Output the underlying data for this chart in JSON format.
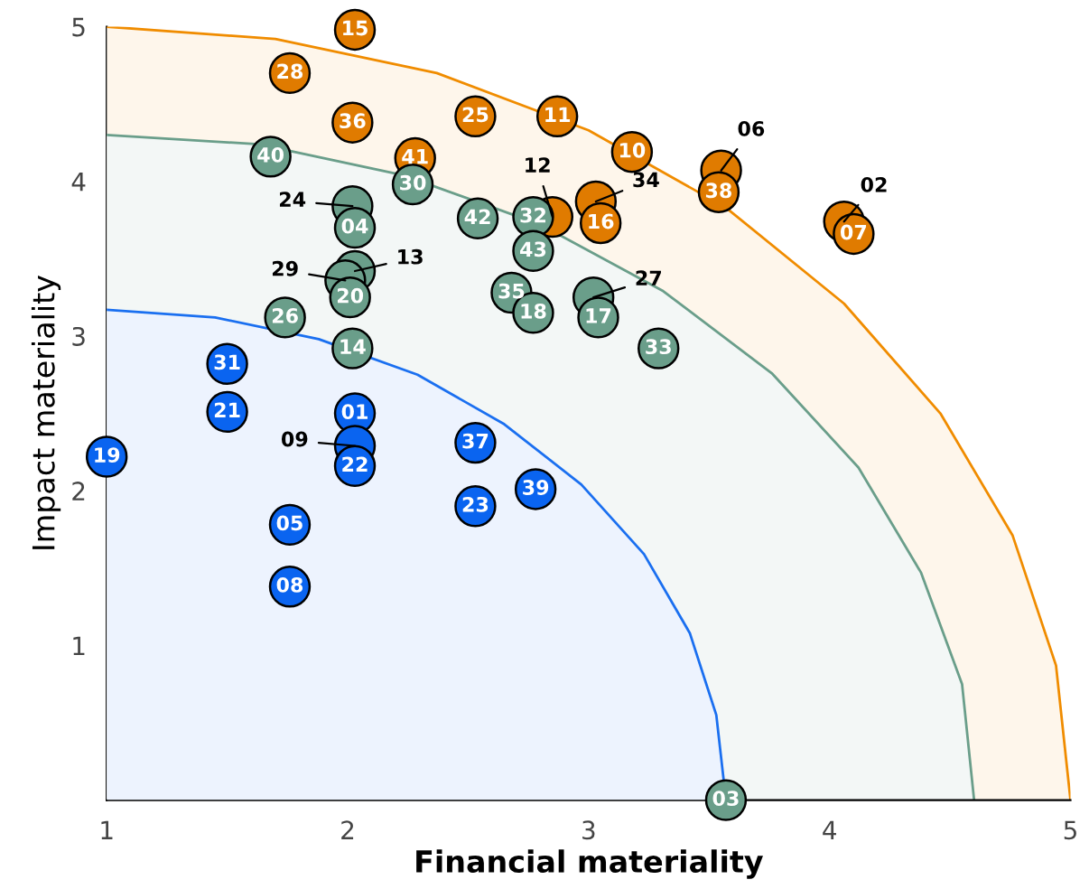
{
  "chart_data": {
    "type": "scatter",
    "xlabel": "Financial materiality",
    "ylabel": "Impact materiality",
    "xlim": [
      1,
      5
    ],
    "ylim": [
      0,
      5
    ],
    "xticks": [
      1,
      2,
      3,
      4,
      5
    ],
    "yticks": [
      1,
      2,
      3,
      4,
      5
    ],
    "grid": false,
    "legend": false,
    "series": [
      {
        "type": "area",
        "color": "#f08c00",
        "x": [
          5,
          4.94,
          4.76,
          4.46,
          4.06,
          3.57,
          3,
          2.37,
          1.7,
          1
        ],
        "values": [
          0,
          0.87,
          1.71,
          2.5,
          3.21,
          3.83,
          4.33,
          4.7,
          4.92,
          5
        ]
      },
      {
        "type": "area",
        "color": "#6a9e8a",
        "x": [
          4.6,
          4.55,
          4.38,
          4.12,
          3.76,
          3.31,
          2.8,
          2.23,
          1.63,
          1
        ],
        "values": [
          0,
          0.75,
          1.47,
          2.15,
          2.76,
          3.29,
          3.72,
          4.04,
          4.24,
          4.3
        ]
      },
      {
        "type": "area",
        "color": "#1a6ff0",
        "x": [
          3.57,
          3.53,
          3.42,
          3.23,
          2.97,
          2.65,
          2.29,
          1.88,
          1.45,
          1
        ],
        "values": [
          0,
          0.55,
          1.08,
          1.59,
          2.04,
          2.43,
          2.75,
          2.98,
          3.12,
          3.17
        ]
      },
      {
        "color": "#e07b00",
        "x": [
          2.03,
          1.76,
          2.02,
          2.28,
          2.53,
          2.87,
          3.18,
          3.55,
          3.54,
          4.06,
          4.1,
          2.85,
          3.03,
          3.05
        ],
        "values": [
          4.98,
          4.7,
          4.38,
          4.15,
          4.42,
          4.42,
          4.19,
          4.07,
          3.93,
          3.74,
          3.66,
          3.77,
          3.87,
          3.73
        ]
      },
      {
        "color": "#6a9e8a",
        "x": [
          1.68,
          2.27,
          2.02,
          2.03,
          2.54,
          2.77,
          2.77,
          2.03,
          1.99,
          2.01,
          1.74,
          2.02,
          2.68,
          2.77,
          3.02,
          3.04,
          3.29,
          3.57
        ],
        "values": [
          4.16,
          3.98,
          3.84,
          3.7,
          3.76,
          3.77,
          3.55,
          3.42,
          3.36,
          3.25,
          3.12,
          2.92,
          3.28,
          3.15,
          3.25,
          3.12,
          2.92,
          0
        ]
      },
      {
        "color": "#0a64f0",
        "x": [
          1.5,
          1.5,
          2.03,
          2.03,
          2.03,
          2.53,
          1.0,
          2.78,
          2.53,
          1.76,
          1.76
        ],
        "values": [
          2.82,
          2.51,
          2.5,
          2.29,
          2.16,
          2.31,
          2.22,
          2.01,
          1.9,
          1.78,
          1.38
        ]
      }
    ],
    "annotations": [
      {
        "text": "12",
        "x": 2.85,
        "y": 3.77
      },
      {
        "text": "34",
        "x": 3.03,
        "y": 3.87
      },
      {
        "text": "06",
        "x": 3.55,
        "y": 4.07
      },
      {
        "text": "02",
        "x": 4.06,
        "y": 3.74
      },
      {
        "text": "24",
        "x": 2.02,
        "y": 3.84
      },
      {
        "text": "29",
        "x": 1.99,
        "y": 3.36
      },
      {
        "text": "13",
        "x": 2.03,
        "y": 3.42
      },
      {
        "text": "09",
        "x": 2.03,
        "y": 2.29
      },
      {
        "text": "27",
        "x": 3.02,
        "y": 3.25
      },
      {
        "text": "15",
        "x": 2.03,
        "y": 4.98
      },
      {
        "text": "28",
        "x": 1.76,
        "y": 4.7
      },
      {
        "text": "36",
        "x": 2.02,
        "y": 4.38
      },
      {
        "text": "41",
        "x": 2.28,
        "y": 4.15
      },
      {
        "text": "25",
        "x": 2.53,
        "y": 4.42
      },
      {
        "text": "11",
        "x": 2.87,
        "y": 4.42
      },
      {
        "text": "10",
        "x": 3.18,
        "y": 4.19
      },
      {
        "text": "38",
        "x": 3.54,
        "y": 3.93
      },
      {
        "text": "07",
        "x": 4.1,
        "y": 3.66
      },
      {
        "text": "16",
        "x": 3.05,
        "y": 3.73
      },
      {
        "text": "40",
        "x": 1.68,
        "y": 4.16
      },
      {
        "text": "30",
        "x": 2.27,
        "y": 3.98
      },
      {
        "text": "04",
        "x": 2.03,
        "y": 3.7
      },
      {
        "text": "42",
        "x": 2.54,
        "y": 3.76
      },
      {
        "text": "32",
        "x": 2.77,
        "y": 3.77
      },
      {
        "text": "43",
        "x": 2.77,
        "y": 3.55
      },
      {
        "text": "20",
        "x": 2.01,
        "y": 3.25
      },
      {
        "text": "26",
        "x": 1.74,
        "y": 3.12
      },
      {
        "text": "14",
        "x": 2.02,
        "y": 2.92
      },
      {
        "text": "35",
        "x": 2.68,
        "y": 3.28
      },
      {
        "text": "18",
        "x": 2.77,
        "y": 3.15
      },
      {
        "text": "17",
        "x": 3.04,
        "y": 3.12
      },
      {
        "text": "33",
        "x": 3.29,
        "y": 2.92
      },
      {
        "text": "03",
        "x": 3.57,
        "y": 0
      },
      {
        "text": "31",
        "x": 1.5,
        "y": 2.82
      },
      {
        "text": "21",
        "x": 1.5,
        "y": 2.51
      },
      {
        "text": "01",
        "x": 2.03,
        "y": 2.5
      },
      {
        "text": "22",
        "x": 2.03,
        "y": 2.16
      },
      {
        "text": "37",
        "x": 2.53,
        "y": 2.31
      },
      {
        "text": "19",
        "x": 1.0,
        "y": 2.22
      },
      {
        "text": "39",
        "x": 2.78,
        "y": 2.01
      },
      {
        "text": "23",
        "x": 2.53,
        "y": 1.9
      },
      {
        "text": "05",
        "x": 1.76,
        "y": 1.78
      },
      {
        "text": "08",
        "x": 1.76,
        "y": 1.38
      }
    ]
  }
}
